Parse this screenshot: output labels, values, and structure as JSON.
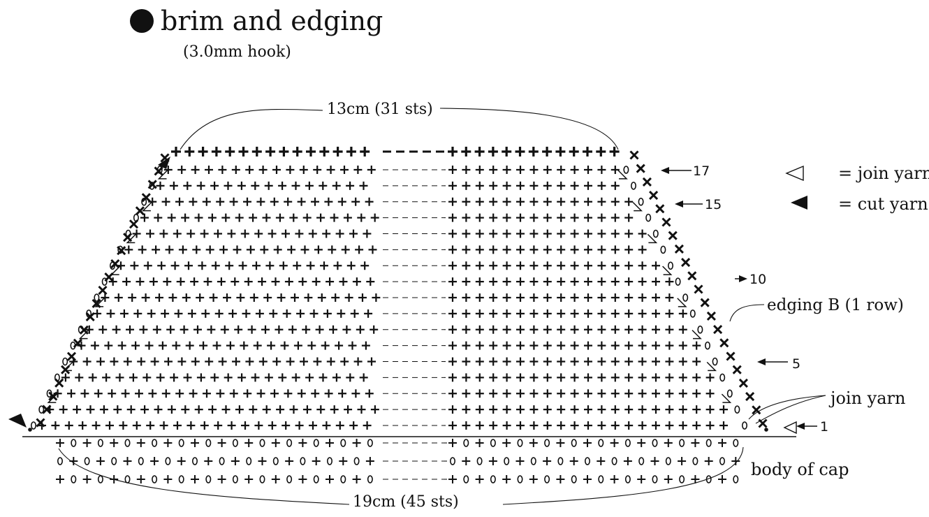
{
  "title": "brim and edging",
  "subtitle": "(3.0mm hook)",
  "dimensions": {
    "top": "13cm (31 sts)",
    "bottom": "19cm (45 sts)"
  },
  "legend": {
    "join": "= join yarn",
    "cut": "= cut yarn"
  },
  "labels": {
    "edging": "edging B (1 row)",
    "join": "join yarn",
    "body": "body of cap"
  },
  "row_numbers": {
    "r17": "17",
    "r15": "15",
    "r10": "10",
    "r5": "5",
    "r1": "1"
  },
  "symbols": {
    "single_crochet": "+",
    "chain": "o",
    "edging_stitch": "x"
  }
}
